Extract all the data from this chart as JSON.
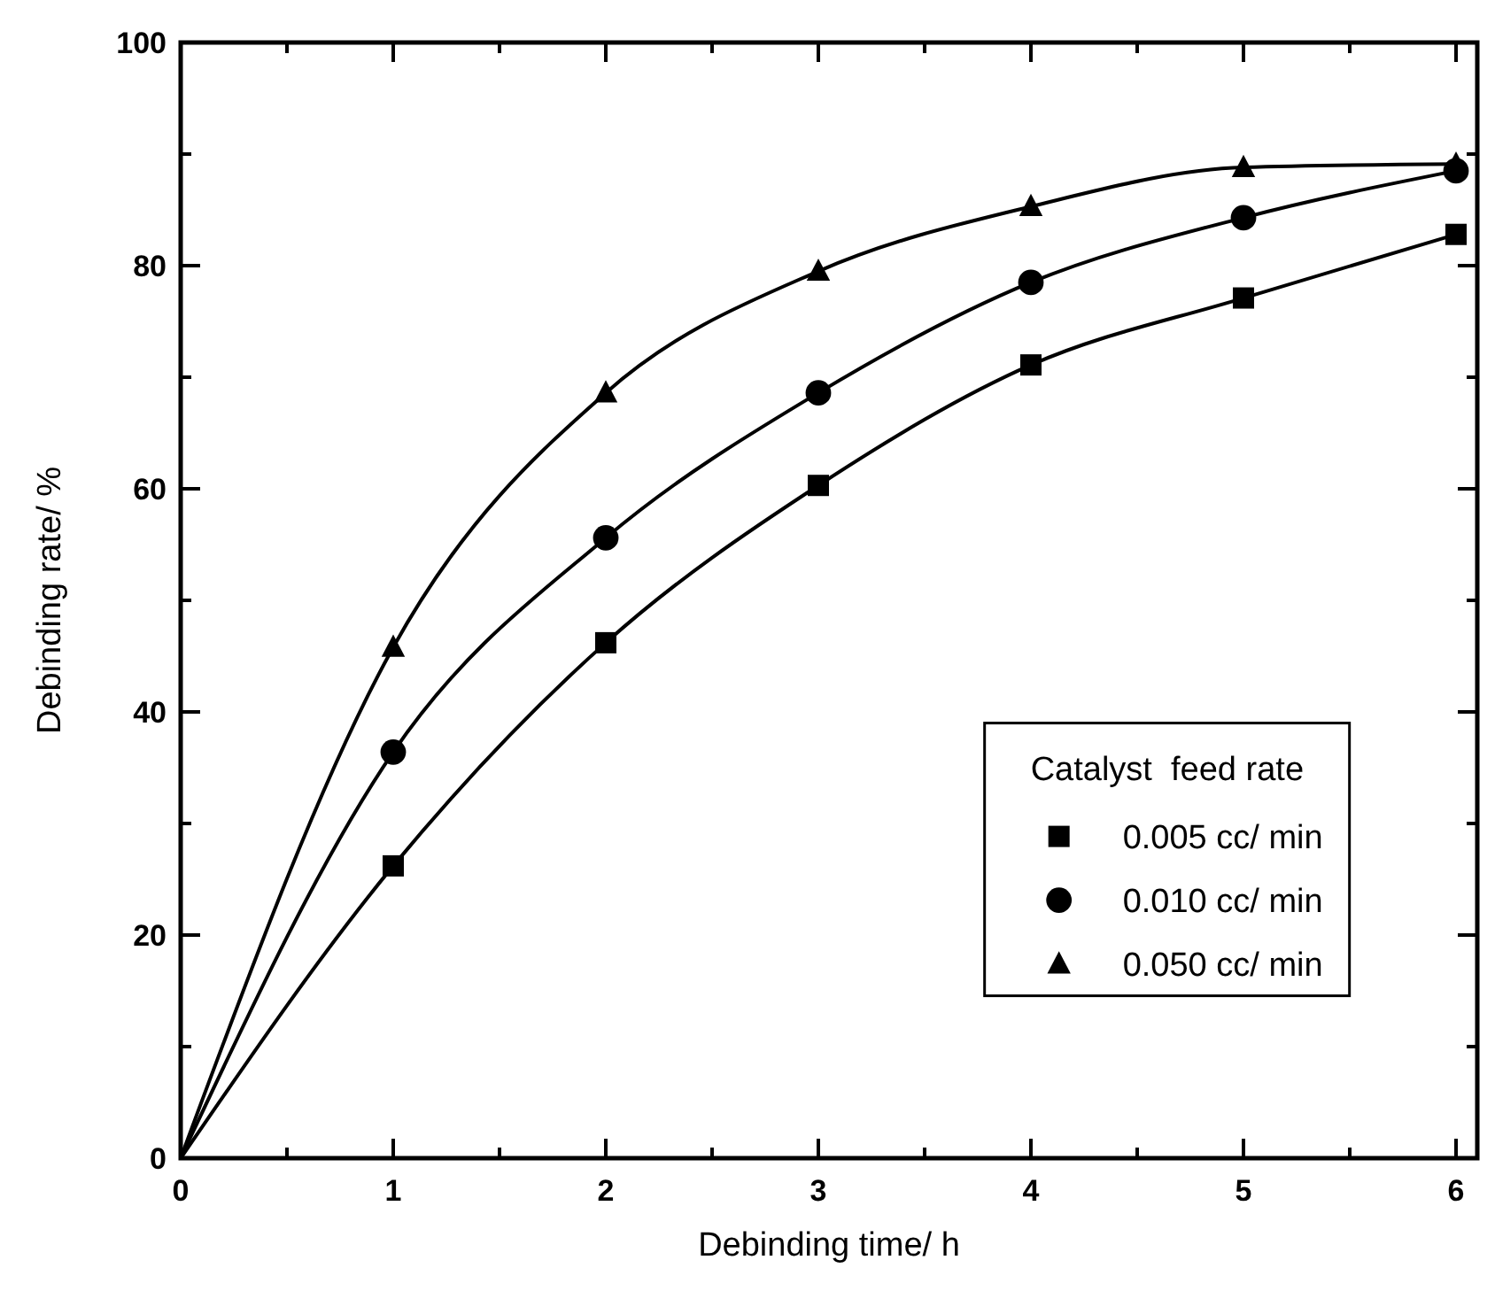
{
  "chart_data": {
    "type": "line",
    "xlabel": "Debinding time/ h",
    "ylabel": "Debinding rate/ %",
    "legend_title": "Catalyst  feed rate",
    "legend": "bottom right",
    "marker": "circle",
    "line_style": "solid",
    "grid": false,
    "x": [
      0,
      1,
      2,
      3,
      4,
      5,
      6
    ],
    "xlim": [
      0,
      6.1
    ],
    "xticks": [
      0,
      {
        "value": 0.5,
        "label": null
      },
      1,
      {
        "value": 1.5,
        "label": null
      },
      2,
      {
        "value": 2.5,
        "label": null
      },
      3,
      {
        "value": 3.5,
        "label": null
      },
      4,
      {
        "value": 4.5,
        "label": null
      },
      5,
      {
        "value": 5.5,
        "label": null
      },
      6
    ],
    "ylim": [
      0,
      100
    ],
    "yticks": [
      0,
      {
        "value": 10,
        "label": null
      },
      20,
      {
        "value": 30,
        "label": null
      },
      40,
      {
        "value": 50,
        "label": null
      },
      60,
      {
        "value": 70,
        "label": null
      },
      80,
      {
        "value": 90,
        "label": null
      },
      100
    ],
    "series": [
      {
        "name": "0.005 cc/ min",
        "color": "#000000",
        "marker": "square",
        "values": [
          0,
          26.2,
          46.2,
          60.3,
          71.1,
          77.1,
          82.8
        ]
      },
      {
        "name": "0.010 cc/ min",
        "color": "#000000",
        "marker": "circle",
        "values": [
          0,
          36.4,
          55.6,
          68.6,
          78.5,
          84.3,
          88.5
        ]
      },
      {
        "name": "0.050 cc/ min",
        "color": "#000000",
        "marker": "triangle",
        "values": [
          0,
          45.8,
          68.6,
          79.5,
          85.3,
          88.8,
          89.1
        ]
      }
    ]
  }
}
